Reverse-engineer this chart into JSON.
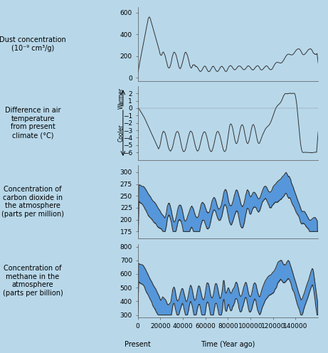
{
  "background_color": "#b8d8ea",
  "x_max": 160000,
  "x_ticks": [
    0,
    20000,
    40000,
    60000,
    80000,
    100000,
    120000,
    140000
  ],
  "x_tick_labels": [
    "0",
    "20000",
    "40000",
    "60000",
    "80000",
    "100000",
    "120000",
    "140000"
  ],
  "xlabel": "Time (Year ago)",
  "xlabel2": "Present",
  "panel1_ylabel": "Dust concentration\n(10⁻⁹ cm³/g)",
  "panel1_ylim": [
    -30,
    650
  ],
  "panel1_yticks": [
    0,
    200,
    400,
    600
  ],
  "panel2_ylabel": "Difference in air\ntemperature\nfrom present\nclimate (°C)",
  "panel2_ylim": [
    -7,
    3
  ],
  "panel2_yticks": [
    -6,
    -5,
    -4,
    -3,
    -2,
    -1,
    0,
    1,
    2
  ],
  "panel2_warmer_label": "Warmer",
  "panel2_cooler_label": "Cooler",
  "panel3_ylabel": "Concentration of\ncarbon dioxide in\nthe atmosphere\n(parts per million)",
  "panel3_ylim": [
    160,
    315
  ],
  "panel3_yticks": [
    175,
    200,
    225,
    250,
    275,
    300
  ],
  "panel4_ylabel": "Concentration of\nmethane in the\natmosphere\n(parts per billion)",
  "panel4_ylim": [
    280,
    820
  ],
  "panel4_yticks": [
    300,
    400,
    500,
    600,
    700,
    800
  ],
  "line_color": "#333333",
  "fill_color": "#4a90d9",
  "fill_alpha": 0.9,
  "label_fontsize": 7,
  "tick_fontsize": 6.5
}
